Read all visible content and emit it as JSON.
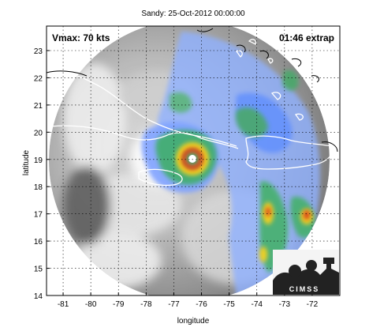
{
  "title": "Sandy: 25-Oct-2012 00:00:00",
  "vmax_label": "Vmax: 70 kts",
  "time_label": "01:46 extrap",
  "xlabel": "longitude",
  "ylabel": "latitude",
  "x_ticks": [
    "-81",
    "-80",
    "-79",
    "-78",
    "-77",
    "-76",
    "-75",
    "-74",
    "-73",
    "-72"
  ],
  "y_ticks": [
    "23",
    "22",
    "21",
    "20",
    "19",
    "18",
    "17",
    "16",
    "15",
    "14"
  ],
  "x_tick_values": [
    -81,
    -80,
    -79,
    -78,
    -77,
    -76,
    -75,
    -74,
    -73,
    -72
  ],
  "y_tick_values": [
    23,
    22,
    21,
    20,
    19,
    18,
    17,
    16,
    15,
    14
  ],
  "lon_range": [
    -81.6,
    -71.0
  ],
  "lat_range": [
    14.0,
    23.9
  ],
  "storm_center": {
    "lon": -76.4,
    "lat": 19.0
  },
  "logo_text": "CIMSS",
  "colors": {
    "frame": "#000000",
    "grid": "#000000",
    "rain_light": "#8fb0ff",
    "rain_mod": "#3fae6a",
    "rain_heavy": "#f1d023",
    "rain_extreme": "#d63a1f",
    "coast": "#ffffff"
  }
}
